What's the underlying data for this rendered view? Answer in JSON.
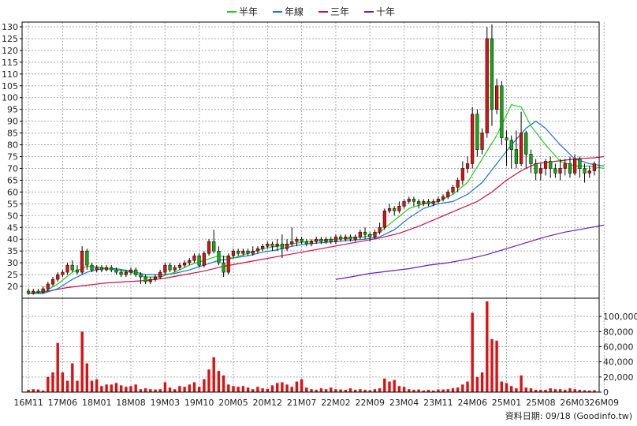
{
  "source_note": "資料日期: 09/18 (Goodinfo.tw)",
  "chart_data": {
    "type": "candlestick",
    "legend": {
      "placement": "top-center",
      "items": [
        {
          "name": "半年",
          "color": "#22cc22"
        },
        {
          "name": "年線",
          "color": "#1e6fd9"
        },
        {
          "name": "三年",
          "color": "#cc1144"
        },
        {
          "name": "十年",
          "color": "#6a1fb0"
        }
      ]
    },
    "colors": {
      "up": "#dd1111",
      "down": "#11aa11",
      "volume": "#dd1111",
      "wick": "#000000",
      "grid": "#aaaaaa"
    },
    "grid": true,
    "price_axis": {
      "position": "left",
      "min": 15,
      "max": 132,
      "ticks": [
        20,
        25,
        30,
        35,
        40,
        45,
        50,
        55,
        60,
        65,
        70,
        75,
        80,
        85,
        90,
        95,
        100,
        105,
        110,
        115,
        120,
        125,
        130
      ]
    },
    "volume_axis": {
      "position": "right",
      "min": 0,
      "max": 120000,
      "ticks": [
        0,
        20000,
        40000,
        60000,
        80000,
        100000
      ],
      "tick_labels": [
        "0",
        "20,000",
        "40,000",
        "60,000",
        "80,000",
        "100,000"
      ]
    },
    "x_tick_labels": [
      "16M11",
      "17M06",
      "18M01",
      "18M08",
      "19M03",
      "19M10",
      "20M05",
      "20M12",
      "21M07",
      "22M02",
      "22M09",
      "23M04",
      "23M11",
      "24M06",
      "25M01",
      "25M08",
      "26M03",
      "26M09"
    ],
    "x_tick_positions": [
      0,
      7,
      14,
      21,
      28,
      35,
      42,
      49,
      56,
      63,
      70,
      77,
      84,
      91,
      98,
      105,
      112,
      118
    ],
    "candles": [
      [
        18,
        17,
        19,
        16.5
      ],
      [
        17,
        18,
        19,
        16.5
      ],
      [
        18,
        17.5,
        19,
        17
      ],
      [
        17.5,
        19,
        20,
        17
      ],
      [
        19,
        21,
        22,
        18
      ],
      [
        21,
        23,
        24,
        20
      ],
      [
        23,
        25,
        26,
        22
      ],
      [
        25,
        26,
        27,
        24
      ],
      [
        26,
        29,
        30,
        25
      ],
      [
        29,
        27,
        31,
        26
      ],
      [
        27,
        26,
        29,
        25
      ],
      [
        26,
        35,
        37,
        25
      ],
      [
        35,
        29,
        36,
        27
      ],
      [
        29,
        27,
        30,
        26
      ],
      [
        27,
        28,
        29,
        26
      ],
      [
        28,
        27,
        29,
        26
      ],
      [
        27,
        28,
        29,
        26.5
      ],
      [
        28,
        27,
        29,
        26
      ],
      [
        27,
        26,
        28,
        25
      ],
      [
        26,
        25,
        27,
        24
      ],
      [
        25,
        26,
        27,
        24
      ],
      [
        26,
        27,
        28,
        25
      ],
      [
        27,
        25,
        28,
        24
      ],
      [
        25,
        24,
        26,
        21
      ],
      [
        24,
        22,
        25,
        21
      ],
      [
        22,
        23,
        24,
        21
      ],
      [
        23,
        24,
        25,
        22
      ],
      [
        24,
        26,
        27,
        23
      ],
      [
        26,
        29,
        30,
        25
      ],
      [
        29,
        27,
        30,
        26
      ],
      [
        27,
        28,
        29,
        26
      ],
      [
        28,
        29,
        30,
        27
      ],
      [
        29,
        30,
        31,
        28
      ],
      [
        30,
        31,
        32,
        29
      ],
      [
        31,
        33,
        34,
        30
      ],
      [
        33,
        29,
        34,
        28
      ],
      [
        29,
        34,
        35,
        28
      ],
      [
        34,
        39,
        40,
        33
      ],
      [
        39,
        35,
        44,
        34
      ],
      [
        35,
        30,
        37,
        29
      ],
      [
        30,
        26,
        33,
        24
      ],
      [
        26,
        33,
        34,
        25
      ],
      [
        33,
        35,
        36,
        32
      ],
      [
        35,
        34,
        36,
        33
      ],
      [
        34,
        35,
        36,
        33
      ],
      [
        35,
        34,
        36,
        33
      ],
      [
        34,
        35,
        37,
        33
      ],
      [
        35,
        36,
        37,
        34
      ],
      [
        36,
        37,
        38,
        35
      ],
      [
        37,
        38,
        39,
        36
      ],
      [
        38,
        37,
        39,
        35
      ],
      [
        37,
        38,
        40,
        35
      ],
      [
        38,
        36,
        42,
        32
      ],
      [
        36,
        38,
        40,
        35
      ],
      [
        38,
        39,
        45,
        37
      ],
      [
        39,
        40,
        41,
        37
      ],
      [
        40,
        39,
        41,
        38
      ],
      [
        39,
        38,
        40,
        37
      ],
      [
        38,
        39,
        40,
        37
      ],
      [
        39,
        40,
        41,
        38
      ],
      [
        40,
        39,
        41,
        38
      ],
      [
        39,
        40,
        41,
        38
      ],
      [
        40,
        39,
        41,
        38
      ],
      [
        39,
        41,
        42,
        38
      ],
      [
        41,
        40,
        42,
        39
      ],
      [
        40,
        41,
        42,
        39
      ],
      [
        41,
        40,
        42,
        39
      ],
      [
        40,
        41,
        42,
        39
      ],
      [
        41,
        43,
        44,
        40
      ],
      [
        43,
        42,
        45,
        40
      ],
      [
        42,
        41,
        43,
        39
      ],
      [
        41,
        43,
        44,
        40
      ],
      [
        43,
        45,
        47,
        42
      ],
      [
        45,
        52,
        53,
        44
      ],
      [
        52,
        53,
        55,
        51
      ],
      [
        53,
        52,
        54,
        50
      ],
      [
        52,
        54,
        56,
        51
      ],
      [
        54,
        56,
        57,
        53
      ],
      [
        56,
        57,
        58,
        55
      ],
      [
        57,
        56,
        58,
        54
      ],
      [
        56,
        55,
        57,
        53
      ],
      [
        55,
        56,
        57,
        54
      ],
      [
        56,
        55,
        57,
        54
      ],
      [
        55,
        56,
        57,
        54
      ],
      [
        56,
        57,
        58,
        55
      ],
      [
        57,
        58,
        59,
        56
      ],
      [
        58,
        60,
        61,
        57
      ],
      [
        60,
        62,
        63,
        59
      ],
      [
        62,
        65,
        66,
        60
      ],
      [
        65,
        70,
        73,
        63
      ],
      [
        70,
        72,
        75,
        68
      ],
      [
        72,
        93,
        96,
        70
      ],
      [
        93,
        78,
        95,
        75
      ],
      [
        78,
        85,
        87,
        76
      ],
      [
        85,
        125,
        130,
        83
      ],
      [
        125,
        95,
        131,
        88
      ],
      [
        95,
        105,
        108,
        93
      ],
      [
        105,
        83,
        107,
        80
      ],
      [
        83,
        82,
        86,
        71
      ],
      [
        82,
        78,
        84,
        70
      ],
      [
        78,
        72,
        86,
        70
      ],
      [
        72,
        85,
        94,
        71
      ],
      [
        85,
        76,
        86,
        70
      ],
      [
        76,
        72,
        78,
        68
      ],
      [
        72,
        68,
        74,
        65
      ],
      [
        68,
        70,
        72,
        65
      ],
      [
        70,
        73,
        74,
        67
      ],
      [
        73,
        70,
        75,
        66
      ],
      [
        70,
        68,
        72,
        66
      ],
      [
        68,
        70,
        74,
        65
      ],
      [
        70,
        72,
        74,
        67
      ],
      [
        72,
        68,
        75,
        66
      ],
      [
        68,
        74,
        76,
        67
      ],
      [
        74,
        70,
        75,
        66
      ],
      [
        70,
        68,
        72,
        64
      ],
      [
        68,
        69,
        71,
        66
      ],
      [
        69,
        72,
        73,
        67
      ]
    ],
    "ma_half_year": [
      [
        0,
        17
      ],
      [
        3,
        17.5
      ],
      [
        6,
        21
      ],
      [
        9,
        26
      ],
      [
        12,
        28.5
      ],
      [
        15,
        28
      ],
      [
        18,
        27
      ],
      [
        21,
        26
      ],
      [
        24,
        24
      ],
      [
        27,
        24
      ],
      [
        30,
        26
      ],
      [
        33,
        29
      ],
      [
        36,
        31
      ],
      [
        39,
        33
      ],
      [
        42,
        32
      ],
      [
        45,
        34
      ],
      [
        48,
        36
      ],
      [
        51,
        37
      ],
      [
        54,
        38
      ],
      [
        57,
        39
      ],
      [
        60,
        39.5
      ],
      [
        63,
        40
      ],
      [
        66,
        40.5
      ],
      [
        69,
        41
      ],
      [
        72,
        43
      ],
      [
        75,
        48
      ],
      [
        78,
        53
      ],
      [
        81,
        55
      ],
      [
        84,
        56
      ],
      [
        87,
        59
      ],
      [
        90,
        64
      ],
      [
        93,
        74
      ],
      [
        96,
        84
      ],
      [
        99,
        97
      ],
      [
        101,
        96
      ],
      [
        103,
        88
      ],
      [
        106,
        80
      ],
      [
        109,
        73
      ],
      [
        112,
        71
      ],
      [
        115,
        71
      ],
      [
        118,
        70
      ]
    ],
    "ma_year": [
      [
        0,
        17
      ],
      [
        3,
        17
      ],
      [
        6,
        19
      ],
      [
        9,
        23
      ],
      [
        12,
        26
      ],
      [
        15,
        27.5
      ],
      [
        18,
        27.5
      ],
      [
        21,
        26.5
      ],
      [
        24,
        25
      ],
      [
        27,
        25
      ],
      [
        30,
        25.5
      ],
      [
        33,
        27
      ],
      [
        36,
        29
      ],
      [
        39,
        31
      ],
      [
        42,
        32
      ],
      [
        45,
        33
      ],
      [
        48,
        34.5
      ],
      [
        51,
        35.5
      ],
      [
        54,
        37
      ],
      [
        57,
        38
      ],
      [
        60,
        38.5
      ],
      [
        63,
        39
      ],
      [
        66,
        39.5
      ],
      [
        69,
        40
      ],
      [
        72,
        41
      ],
      [
        75,
        44
      ],
      [
        78,
        49
      ],
      [
        81,
        53
      ],
      [
        84,
        55
      ],
      [
        87,
        56
      ],
      [
        90,
        59
      ],
      [
        93,
        64
      ],
      [
        96,
        72
      ],
      [
        99,
        80
      ],
      [
        102,
        87
      ],
      [
        104,
        90
      ],
      [
        106,
        87
      ],
      [
        109,
        80
      ],
      [
        112,
        74
      ],
      [
        115,
        72
      ],
      [
        118,
        71
      ]
    ],
    "ma_three_year": [
      [
        0,
        17
      ],
      [
        4,
        18
      ],
      [
        8,
        19.5
      ],
      [
        12,
        20.5
      ],
      [
        16,
        21.5
      ],
      [
        20,
        22
      ],
      [
        24,
        22.5
      ],
      [
        28,
        23.5
      ],
      [
        32,
        25
      ],
      [
        36,
        26.5
      ],
      [
        40,
        28.5
      ],
      [
        44,
        30
      ],
      [
        48,
        31.5
      ],
      [
        52,
        33
      ],
      [
        56,
        34.5
      ],
      [
        60,
        36
      ],
      [
        64,
        37.5
      ],
      [
        68,
        39
      ],
      [
        72,
        40.5
      ],
      [
        76,
        42.5
      ],
      [
        80,
        45.5
      ],
      [
        84,
        49
      ],
      [
        88,
        52.5
      ],
      [
        92,
        56
      ],
      [
        95,
        60
      ],
      [
        98,
        65
      ],
      [
        101,
        69
      ],
      [
        104,
        72
      ],
      [
        108,
        73
      ],
      [
        112,
        74
      ],
      [
        116,
        74.5
      ],
      [
        118,
        75
      ]
    ],
    "ma_ten_year": [
      [
        63,
        23
      ],
      [
        66,
        24
      ],
      [
        70,
        25.5
      ],
      [
        74,
        26.5
      ],
      [
        78,
        27.5
      ],
      [
        82,
        29
      ],
      [
        86,
        30
      ],
      [
        90,
        31.5
      ],
      [
        94,
        33.5
      ],
      [
        98,
        36
      ],
      [
        102,
        38.5
      ],
      [
        106,
        41
      ],
      [
        110,
        43
      ],
      [
        114,
        44.5
      ],
      [
        118,
        46
      ]
    ],
    "volume": [
      3000,
      4000,
      3500,
      2000,
      20000,
      26000,
      65000,
      26000,
      15000,
      38000,
      15000,
      80000,
      38000,
      15000,
      17000,
      8000,
      10000,
      10000,
      12000,
      9000,
      7000,
      8000,
      10000,
      4000,
      5000,
      4000,
      3500,
      4000,
      13000,
      6000,
      4000,
      8000,
      7000,
      10000,
      13000,
      7000,
      17000,
      30000,
      46000,
      28000,
      22000,
      10000,
      8000,
      7000,
      8000,
      6000,
      4000,
      7000,
      5000,
      4500,
      9000,
      12000,
      13000,
      10000,
      7000,
      14000,
      17000,
      6000,
      4000,
      3000,
      5000,
      4000,
      6000,
      4000,
      3500,
      3000,
      5000,
      3000,
      4000,
      3000,
      2500,
      4000,
      5000,
      18000,
      14000,
      16000,
      8000,
      7000,
      4000,
      3000,
      3500,
      2000,
      3000,
      2000,
      3500,
      3500,
      4000,
      5000,
      6000,
      10000,
      14000,
      105000,
      20000,
      26000,
      120000,
      70000,
      68000,
      14000,
      12000,
      8000,
      5000,
      22000,
      6000,
      5000,
      3000,
      3000,
      3000,
      5000,
      4000,
      4000,
      3000,
      5000,
      4000,
      3000,
      2500,
      2000,
      2500
    ]
  }
}
